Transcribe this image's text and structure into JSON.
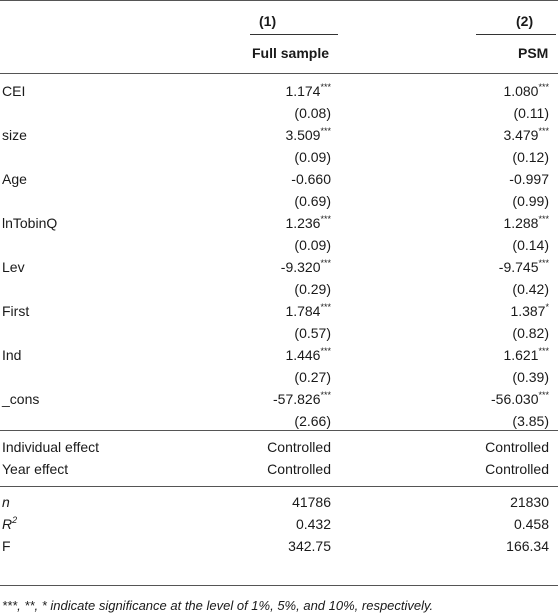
{
  "columns": [
    {
      "number": "(1)",
      "name": "Full sample"
    },
    {
      "number": "(2)",
      "name": "PSM"
    }
  ],
  "rows": [
    {
      "label": "CEI",
      "c1": "1.174***",
      "c2": "1.080***",
      "se1": "(0.08)",
      "se2": "(0.11)"
    },
    {
      "label": "size",
      "c1": "3.509***",
      "c2": "3.479***",
      "se1": "(0.09)",
      "se2": "(0.12)"
    },
    {
      "label": "Age",
      "c1": "-0.660",
      "c2": "-0.997",
      "se1": "(0.69)",
      "se2": "(0.99)"
    },
    {
      "label": "lnTobinQ",
      "c1": "1.236***",
      "c2": "1.288***",
      "se1": "(0.09)",
      "se2": "(0.14)"
    },
    {
      "label": "Lev",
      "c1": "-9.320***",
      "c2": "-9.745***",
      "se1": "(0.29)",
      "se2": "(0.42)"
    },
    {
      "label": "First",
      "c1": "1.784***",
      "c2": "1.387*",
      "se1": "(0.57)",
      "se2": "(0.82)"
    },
    {
      "label": "Ind",
      "c1": "1.446***",
      "c2": "1.621***",
      "se1": "(0.27)",
      "se2": "(0.39)"
    },
    {
      "label": "_cons",
      "c1": "-57.826***",
      "c2": "-56.030***",
      "se1": "(2.66)",
      "se2": "(3.85)"
    }
  ],
  "effects": [
    {
      "label": "Individual effect",
      "c1": "Controlled",
      "c2": "Controlled"
    },
    {
      "label": "Year effect",
      "c1": "Controlled",
      "c2": "Controlled"
    }
  ],
  "stats": [
    {
      "label": "n",
      "c1": "41786",
      "c2": "21830"
    },
    {
      "label": "R",
      "label_sup": "2",
      "c1": "0.432",
      "c2": "0.458"
    },
    {
      "label": "F",
      "c1": "342.75",
      "c2": "166.34"
    }
  ],
  "footnote": "***, **, * indicate significance at the level of 1%, 5%, and 10%, respectively."
}
